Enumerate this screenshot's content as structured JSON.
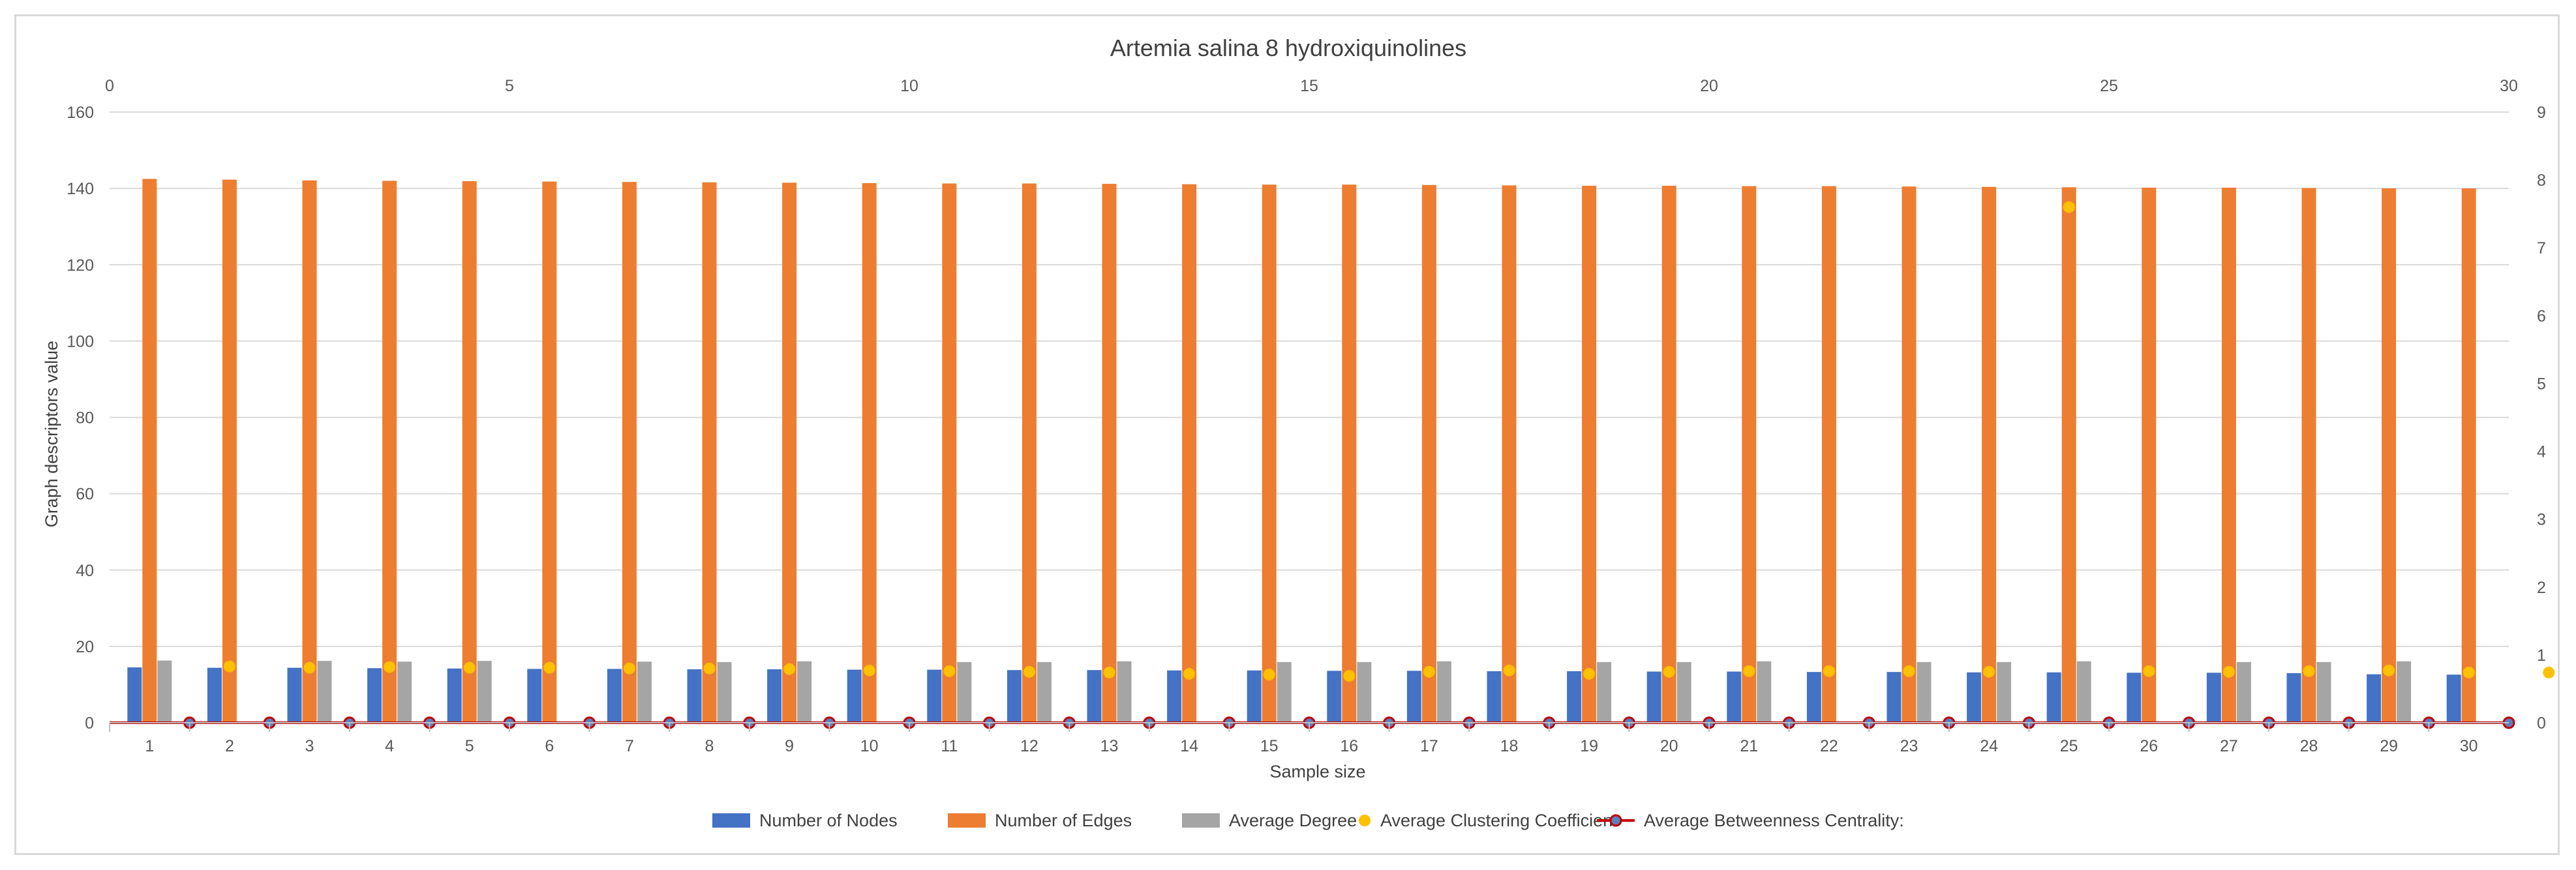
{
  "chart_data": {
    "type": "bar",
    "title": "Artemia salina 8 hydroxiquinolines",
    "xlabel": "Sample size",
    "ylabel": "Graph descriptors value",
    "categories": [
      "1",
      "2",
      "3",
      "4",
      "5",
      "6",
      "7",
      "8",
      "9",
      "10",
      "11",
      "12",
      "13",
      "14",
      "15",
      "16",
      "17",
      "18",
      "19",
      "20",
      "21",
      "22",
      "23",
      "24",
      "25",
      "26",
      "27",
      "28",
      "29",
      "30"
    ],
    "y_left": {
      "min": 0,
      "max": 160,
      "ticks": [
        "0",
        "20",
        "40",
        "60",
        "80",
        "100",
        "120",
        "140",
        "160"
      ]
    },
    "y_right": {
      "min": 0,
      "max": 9,
      "ticks": [
        "0",
        "1",
        "2",
        "3",
        "4",
        "5",
        "6",
        "7",
        "8",
        "9"
      ]
    },
    "x_top": {
      "min": 0,
      "max": 30,
      "ticks": [
        "0",
        "5",
        "10",
        "15",
        "20",
        "25",
        "30"
      ]
    },
    "grid": true,
    "legend_position": "bottom",
    "series": [
      {
        "name": "Number of Nodes",
        "kind": "bar",
        "axis": "left",
        "color": "#4472c4",
        "values": [
          14.5,
          14.4,
          14.4,
          14.3,
          14.2,
          14.1,
          14.1,
          14.0,
          14.0,
          13.9,
          13.9,
          13.8,
          13.8,
          13.7,
          13.7,
          13.6,
          13.6,
          13.5,
          13.5,
          13.4,
          13.4,
          13.3,
          13.3,
          13.2,
          13.2,
          13.1,
          13.1,
          13.0,
          12.7,
          12.6
        ]
      },
      {
        "name": "Number of Edges",
        "kind": "bar",
        "axis": "left",
        "color": "#ed7d31",
        "values": [
          142.5,
          142.3,
          142.1,
          142.0,
          141.9,
          141.8,
          141.7,
          141.6,
          141.5,
          141.4,
          141.3,
          141.3,
          141.2,
          141.1,
          141.0,
          141.0,
          140.9,
          140.8,
          140.7,
          140.7,
          140.6,
          140.6,
          140.5,
          140.4,
          140.3,
          140.2,
          140.2,
          140.1,
          140.0,
          140.0
        ]
      },
      {
        "name": "Average Degree",
        "kind": "bar",
        "axis": "left",
        "color": "#a5a5a5",
        "values": [
          16.3,
          null,
          16.2,
          16.0,
          16.2,
          null,
          16.0,
          15.9,
          16.1,
          null,
          15.9,
          15.9,
          16.1,
          null,
          15.9,
          15.9,
          16.1,
          null,
          15.9,
          15.9,
          16.1,
          null,
          15.9,
          15.9,
          16.1,
          null,
          15.9,
          15.9,
          16.1,
          null
        ]
      },
      {
        "name": "Average Clustering Coefficient",
        "kind": "scatter",
        "axis": "right",
        "color": "#ffc000",
        "x": [
          1.5,
          2.5,
          3.5,
          4.5,
          5.5,
          6.5,
          7.5,
          8.5,
          9.5,
          10.5,
          11.5,
          12.5,
          13.5,
          14.5,
          15.5,
          16.5,
          17.5,
          18.5,
          19.5,
          20.5,
          21.5,
          22.5,
          23.5,
          24.5,
          25.5,
          26.5,
          27.5,
          28.5,
          29.5,
          30.5
        ],
        "values": [
          0.83,
          0.81,
          0.82,
          0.81,
          0.81,
          0.8,
          0.8,
          0.79,
          0.77,
          0.76,
          0.75,
          0.74,
          0.72,
          0.71,
          0.69,
          0.75,
          0.77,
          0.72,
          0.75,
          0.76,
          0.76,
          0.76,
          0.75,
          7.6,
          0.76,
          0.75,
          0.76,
          0.77,
          0.74,
          0.74
        ]
      },
      {
        "name": "Average Betweenness Centrality:",
        "kind": "line",
        "axis": "right",
        "color": "#c00000",
        "marker_fill": "#5b7fbf",
        "x": [
          1,
          2,
          3,
          4,
          5,
          6,
          7,
          8,
          9,
          10,
          11,
          12,
          13,
          14,
          15,
          16,
          17,
          18,
          19,
          20,
          21,
          22,
          23,
          24,
          25,
          26,
          27,
          28,
          29,
          30
        ],
        "values": [
          0,
          0,
          0,
          0,
          0,
          0,
          0,
          0,
          0,
          0,
          0,
          0,
          0,
          0,
          0,
          0,
          0,
          0,
          0,
          0,
          0,
          0,
          0,
          0,
          0,
          0,
          0,
          0,
          0,
          0
        ]
      }
    ]
  }
}
